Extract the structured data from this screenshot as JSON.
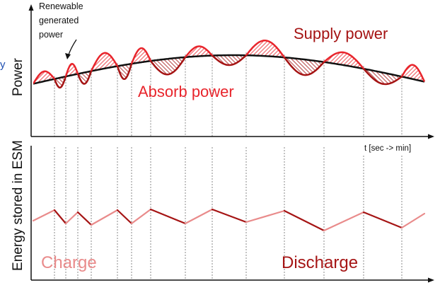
{
  "labels": {
    "renewable_line1": "Renewable",
    "renewable_line2": "generated",
    "renewable_line3": "power",
    "power_axis": "Power",
    "supply_power": "Supply power",
    "absorb_power": "Absorb power",
    "time_axis": "t [sec -> min]",
    "energy_axis": "Energy stored in ESM",
    "charge": "Charge",
    "discharge": "Discharge",
    "edge_fragment": "y"
  },
  "colors": {
    "surplus": "#e8252c",
    "deficit": "#a51414",
    "baseline": "#111111",
    "energy_charge": "#e98b8b",
    "energy_discharge": "#a51414",
    "axis": "#111111",
    "grid": "#888888",
    "edge_fragment": "#1f4fb0"
  }
}
